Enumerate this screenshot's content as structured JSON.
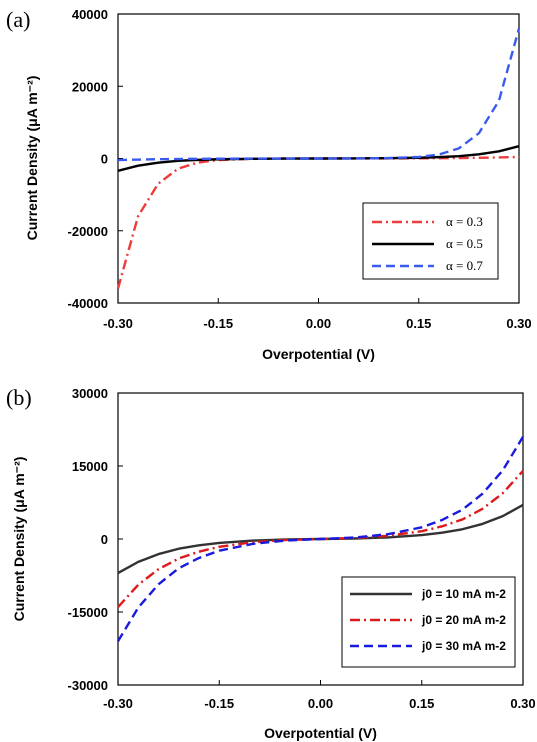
{
  "chart_data": [
    {
      "type": "line",
      "panel_label": "(a)",
      "xlabel": "Overpotential (V)",
      "ylabel": "Current Density (μA m⁻²)",
      "xlim": [
        -0.3,
        0.3
      ],
      "ylim": [
        -40000,
        40000
      ],
      "x_ticks": [
        "-0.30",
        "-0.15",
        "0.00",
        "0.15",
        "0.30"
      ],
      "y_ticks": [
        "-40000",
        "-20000",
        "0",
        "20000",
        "40000"
      ],
      "legend_position": "lower-right",
      "series": [
        {
          "name": "α = 0.3",
          "color": "#ee3b3b",
          "dash": "dashdot",
          "x": [
            -0.3,
            -0.27,
            -0.24,
            -0.21,
            -0.18,
            -0.15,
            -0.1,
            -0.05,
            0,
            0.05,
            0.1,
            0.15,
            0.2,
            0.25,
            0.3
          ],
          "y": [
            -36000,
            -16000,
            -7000,
            -2800,
            -1100,
            -420,
            -90,
            -15,
            0,
            8,
            25,
            55,
            110,
            220,
            420
          ]
        },
        {
          "name": "α = 0.5",
          "color": "#000000",
          "dash": "solid",
          "x": [
            -0.3,
            -0.27,
            -0.24,
            -0.21,
            -0.18,
            -0.15,
            -0.1,
            -0.05,
            0,
            0.05,
            0.1,
            0.15,
            0.18,
            0.21,
            0.24,
            0.27,
            0.3
          ],
          "y": [
            -3400,
            -2000,
            -1150,
            -650,
            -380,
            -210,
            -80,
            -25,
            0,
            25,
            80,
            210,
            380,
            650,
            1150,
            2000,
            3400
          ]
        },
        {
          "name": "α = 0.7",
          "color": "#3b5bee",
          "dash": "dashed",
          "x": [
            -0.3,
            -0.25,
            -0.2,
            -0.15,
            -0.1,
            -0.05,
            0,
            0.05,
            0.1,
            0.15,
            0.18,
            0.21,
            0.24,
            0.27,
            0.3
          ],
          "y": [
            -420,
            -220,
            -110,
            -55,
            -25,
            -8,
            0,
            15,
            90,
            420,
            1100,
            2800,
            7000,
            16000,
            36000
          ]
        }
      ]
    },
    {
      "type": "line",
      "panel_label": "(b)",
      "xlabel": "Overpotential (V)",
      "ylabel": "Current Density (μA m⁻²)",
      "xlim": [
        -0.3,
        0.3
      ],
      "ylim": [
        -30000,
        30000
      ],
      "x_ticks": [
        "-0.30",
        "-0.15",
        "0.00",
        "0.15",
        "0.30"
      ],
      "y_ticks": [
        "-30000",
        "-15000",
        "0",
        "15000",
        "30000"
      ],
      "legend_position": "lower-right",
      "series": [
        {
          "name": "j0 = 10 mA m-2",
          "color": "#333333",
          "dash": "solid",
          "x": [
            -0.3,
            -0.27,
            -0.24,
            -0.21,
            -0.18,
            -0.15,
            -0.1,
            -0.05,
            0,
            0.05,
            0.1,
            0.15,
            0.18,
            0.21,
            0.24,
            0.27,
            0.3
          ],
          "y": [
            -7000,
            -4700,
            -3100,
            -2000,
            -1300,
            -800,
            -330,
            -100,
            0,
            100,
            330,
            800,
            1300,
            2000,
            3100,
            4700,
            7000
          ]
        },
        {
          "name": "j0 = 20 mA m-2",
          "color": "#dd1a1a",
          "dash": "dashdot",
          "x": [
            -0.3,
            -0.27,
            -0.24,
            -0.21,
            -0.18,
            -0.15,
            -0.1,
            -0.05,
            0,
            0.05,
            0.1,
            0.15,
            0.18,
            0.21,
            0.24,
            0.27,
            0.3
          ],
          "y": [
            -14000,
            -9400,
            -6200,
            -4000,
            -2600,
            -1600,
            -660,
            -200,
            0,
            200,
            660,
            1600,
            2600,
            4000,
            6200,
            9400,
            14000
          ]
        },
        {
          "name": "j0 = 30 mA m-2",
          "color": "#1a1add",
          "dash": "dashed",
          "x": [
            -0.3,
            -0.27,
            -0.24,
            -0.21,
            -0.18,
            -0.15,
            -0.1,
            -0.05,
            0,
            0.05,
            0.1,
            0.15,
            0.18,
            0.21,
            0.24,
            0.27,
            0.3
          ],
          "y": [
            -21000,
            -14100,
            -9300,
            -6000,
            -3900,
            -2400,
            -990,
            -300,
            0,
            300,
            990,
            2400,
            3900,
            6000,
            9300,
            14100,
            21000
          ]
        }
      ]
    }
  ]
}
